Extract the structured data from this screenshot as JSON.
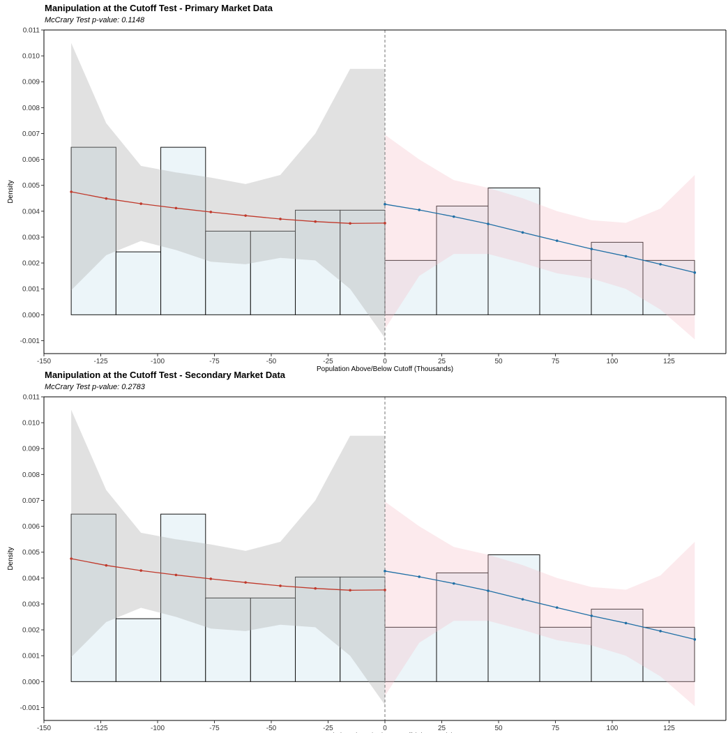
{
  "chart_data": [
    {
      "type": "bar",
      "title": "Manipulation at the Cutoff Test - Primary Market Data",
      "subtitle": "McCrary Test p-value: 0.1148",
      "xlabel": "Population Above/Below Cutoff (Thousands)",
      "ylabel": "Density",
      "xlim": [
        -150,
        150
      ],
      "ylim": [
        -0.0015,
        0.011
      ],
      "xticks": [
        -150,
        -125,
        -100,
        -75,
        -50,
        -25,
        0,
        25,
        50,
        75,
        100,
        125
      ],
      "xtick_labels": [
        "-150",
        "-125",
        "-100",
        "-75",
        "-50",
        "-25",
        "0",
        "25",
        "50",
        "75",
        "100",
        "125"
      ],
      "yticks": [
        -0.001,
        0,
        0.001,
        0.002,
        0.003,
        0.004,
        0.005,
        0.006,
        0.007,
        0.008,
        0.009,
        0.01,
        0.011
      ],
      "ytick_labels": [
        "-0.001",
        "0.000",
        "0.001",
        "0.002",
        "0.003",
        "0.004",
        "0.005",
        "0.006",
        "0.007",
        "0.008",
        "0.009",
        "0.010",
        "0.011"
      ],
      "cutoff": 0,
      "grid": false,
      "histogram": [
        {
          "x0": -138,
          "x1": -118.3,
          "density": 0.00647
        },
        {
          "x0": -118.3,
          "x1": -98.6,
          "density": 0.00243
        },
        {
          "x0": -98.6,
          "x1": -78.9,
          "density": 0.00647
        },
        {
          "x0": -78.9,
          "x1": -59.1,
          "density": 0.00323
        },
        {
          "x0": -59.1,
          "x1": -39.4,
          "density": 0.00323
        },
        {
          "x0": -39.4,
          "x1": -19.7,
          "density": 0.00404
        },
        {
          "x0": -19.7,
          "x1": 0,
          "density": 0.00404
        },
        {
          "x0": 0,
          "x1": 22.7,
          "density": 0.0021
        },
        {
          "x0": 22.7,
          "x1": 45.4,
          "density": 0.0042
        },
        {
          "x0": 45.4,
          "x1": 68.1,
          "density": 0.0049
        },
        {
          "x0": 68.1,
          "x1": 90.8,
          "density": 0.0021
        },
        {
          "x0": 90.8,
          "x1": 113.5,
          "density": 0.0028
        },
        {
          "x0": 113.5,
          "x1": 136.2,
          "density": 0.0021
        }
      ],
      "series": [
        {
          "side": "left",
          "color": "#c0392b",
          "band_color": "#b0b0b0",
          "x": [
            -138,
            -122.6,
            -107.3,
            -91.9,
            -76.6,
            -61.3,
            -46,
            -30.6,
            -15.3,
            0
          ],
          "y": [
            0.00475,
            0.00449,
            0.00429,
            0.00412,
            0.00397,
            0.00383,
            0.0037,
            0.0036,
            0.00353,
            0.00354
          ],
          "lower": [
            0.00095,
            0.0023,
            0.00285,
            0.0025,
            0.00205,
            0.00195,
            0.0022,
            0.0021,
            0.001,
            -0.0009
          ],
          "upper": [
            0.0105,
            0.0074,
            0.00575,
            0.0055,
            0.0053,
            0.00505,
            0.0054,
            0.007,
            0.0095,
            0.0095
          ]
        },
        {
          "side": "right",
          "color": "#1f6fa5",
          "band_color": "#f4b8c2",
          "x": [
            0,
            15.1,
            30.3,
            45.4,
            60.6,
            75.7,
            90.9,
            106,
            121.2,
            136.3
          ],
          "y": [
            0.00427,
            0.00405,
            0.00379,
            0.00351,
            0.00318,
            0.00286,
            0.00254,
            0.00226,
            0.00195,
            0.00163
          ],
          "lower": [
            -0.00055,
            0.0015,
            0.00235,
            0.00235,
            0.002,
            0.0016,
            0.0014,
            0.001,
            0.0002,
            -0.00095
          ],
          "upper": [
            0.00695,
            0.006,
            0.0052,
            0.0049,
            0.0045,
            0.004,
            0.00365,
            0.00355,
            0.0041,
            0.0054
          ]
        }
      ]
    },
    {
      "type": "bar",
      "title": "Manipulation at the Cutoff Test - Secondary Market Data",
      "subtitle": "McCrary Test p-value: 0.2783",
      "xlabel": "Population Above/Below Cutoff (Thousands)",
      "ylabel": "Density",
      "xlim": [
        -150,
        150
      ],
      "ylim": [
        -0.0015,
        0.011
      ],
      "xticks": [
        -150,
        -125,
        -100,
        -75,
        -50,
        -25,
        0,
        25,
        50,
        75,
        100,
        125
      ],
      "xtick_labels": [
        "-150",
        "-125",
        "-100",
        "-75",
        "-50",
        "-25",
        "0",
        "25",
        "50",
        "75",
        "100",
        "125"
      ],
      "yticks": [
        -0.001,
        0,
        0.001,
        0.002,
        0.003,
        0.004,
        0.005,
        0.006,
        0.007,
        0.008,
        0.009,
        0.01,
        0.011
      ],
      "ytick_labels": [
        "-0.001",
        "0.000",
        "0.001",
        "0.002",
        "0.003",
        "0.004",
        "0.005",
        "0.006",
        "0.007",
        "0.008",
        "0.009",
        "0.010",
        "0.011"
      ],
      "cutoff": 0,
      "grid": false,
      "histogram": [
        {
          "x0": -138,
          "x1": -118.3,
          "density": 0.00647
        },
        {
          "x0": -118.3,
          "x1": -98.6,
          "density": 0.00243
        },
        {
          "x0": -98.6,
          "x1": -78.9,
          "density": 0.00647
        },
        {
          "x0": -78.9,
          "x1": -59.1,
          "density": 0.00323
        },
        {
          "x0": -59.1,
          "x1": -39.4,
          "density": 0.00323
        },
        {
          "x0": -39.4,
          "x1": -19.7,
          "density": 0.00404
        },
        {
          "x0": -19.7,
          "x1": 0,
          "density": 0.00404
        },
        {
          "x0": 0,
          "x1": 22.7,
          "density": 0.0021
        },
        {
          "x0": 22.7,
          "x1": 45.4,
          "density": 0.0042
        },
        {
          "x0": 45.4,
          "x1": 68.1,
          "density": 0.0049
        },
        {
          "x0": 68.1,
          "x1": 90.8,
          "density": 0.0021
        },
        {
          "x0": 90.8,
          "x1": 113.5,
          "density": 0.0028
        },
        {
          "x0": 113.5,
          "x1": 136.2,
          "density": 0.0021
        }
      ],
      "series": [
        {
          "side": "left",
          "color": "#c0392b",
          "band_color": "#b0b0b0",
          "x": [
            -138,
            -122.6,
            -107.3,
            -91.9,
            -76.6,
            -61.3,
            -46,
            -30.6,
            -15.3,
            0
          ],
          "y": [
            0.00475,
            0.00449,
            0.00429,
            0.00412,
            0.00397,
            0.00383,
            0.0037,
            0.0036,
            0.00353,
            0.00354
          ],
          "lower": [
            0.00095,
            0.0023,
            0.00285,
            0.0025,
            0.00205,
            0.00195,
            0.0022,
            0.0021,
            0.001,
            -0.0009
          ],
          "upper": [
            0.0105,
            0.0074,
            0.00575,
            0.0055,
            0.0053,
            0.00505,
            0.0054,
            0.007,
            0.0095,
            0.0095
          ]
        },
        {
          "side": "right",
          "color": "#1f6fa5",
          "band_color": "#f4b8c2",
          "x": [
            0,
            15.1,
            30.3,
            45.4,
            60.6,
            75.7,
            90.9,
            106,
            121.2,
            136.3
          ],
          "y": [
            0.00427,
            0.00405,
            0.00379,
            0.00351,
            0.00318,
            0.00286,
            0.00254,
            0.00226,
            0.00195,
            0.00163
          ],
          "lower": [
            -0.00055,
            0.0015,
            0.00235,
            0.00235,
            0.002,
            0.0016,
            0.0014,
            0.001,
            0.0002,
            -0.00095
          ],
          "upper": [
            0.00695,
            0.006,
            0.0052,
            0.0049,
            0.0045,
            0.004,
            0.00365,
            0.00355,
            0.0041,
            0.0054
          ]
        }
      ]
    }
  ]
}
